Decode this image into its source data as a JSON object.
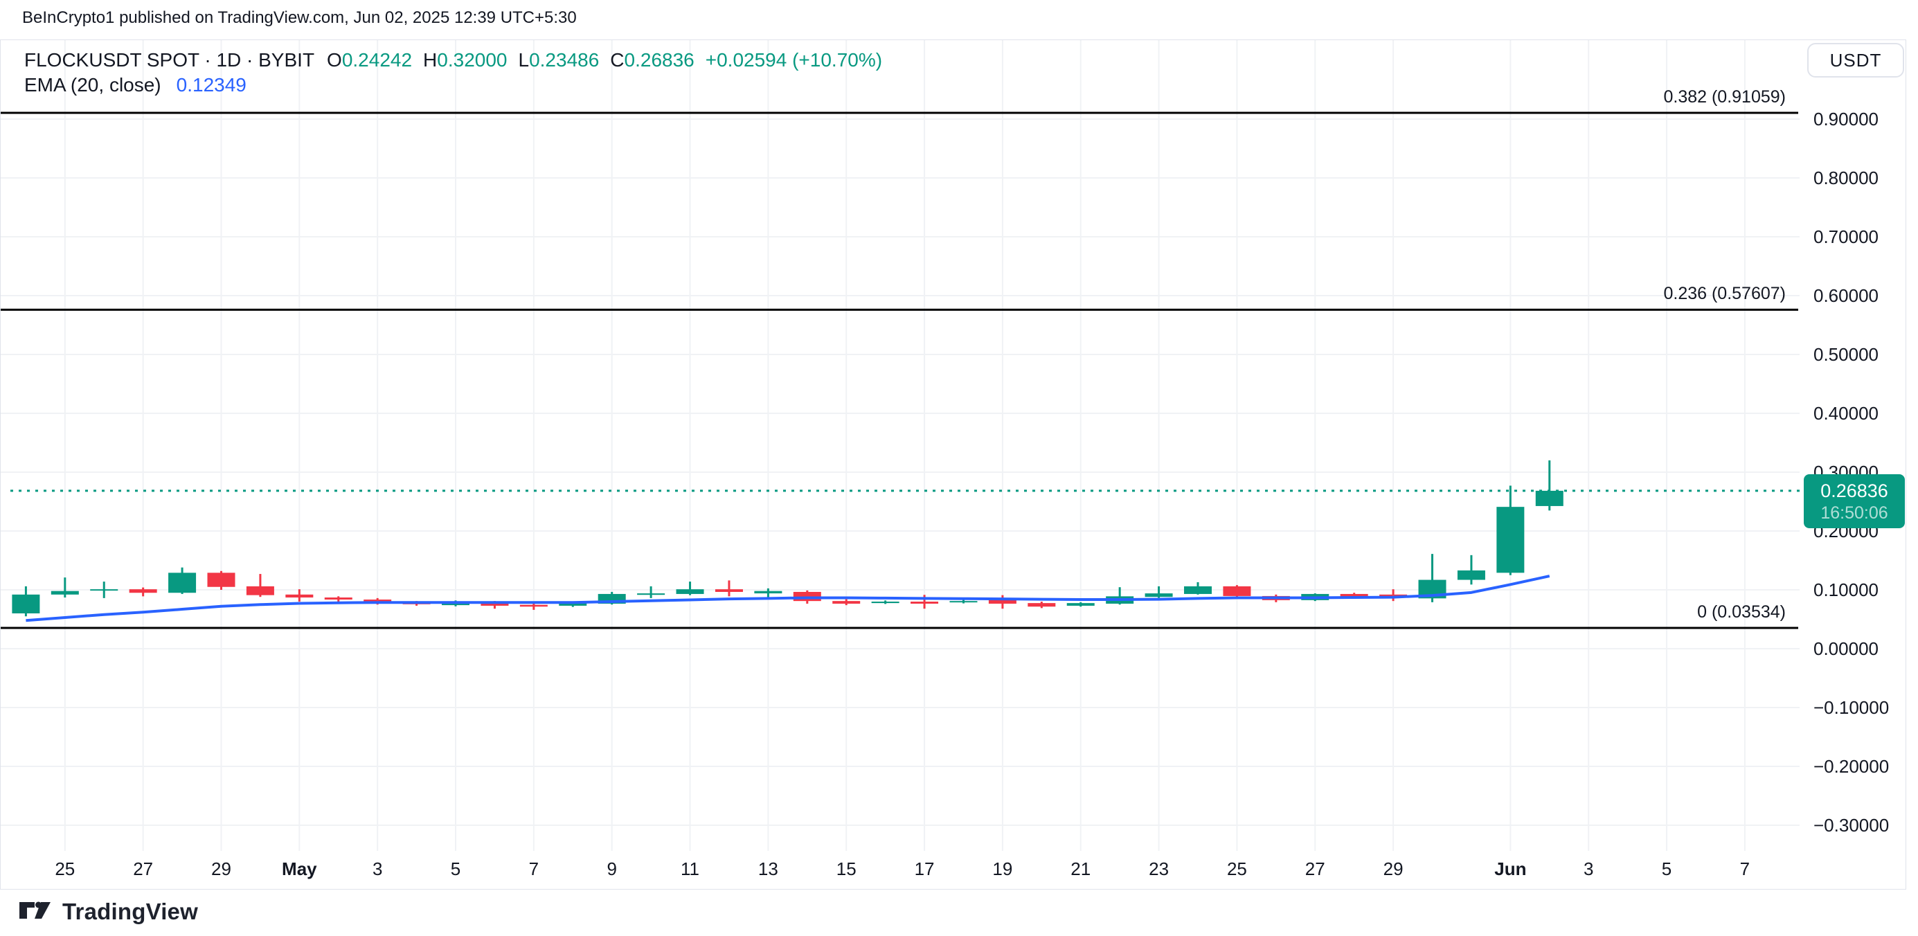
{
  "page": {
    "attribution": "BeInCrypto1 published on TradingView.com, Jun 02, 2025 12:39 UTC+5:30"
  },
  "legend": {
    "title": "FLOCKUSDT SPOT · 1D · BYBIT",
    "ohlc": [
      {
        "label": "O",
        "value": "0.24242"
      },
      {
        "label": "H",
        "value": "0.32000"
      },
      {
        "label": "L",
        "value": "0.23486"
      },
      {
        "label": "C",
        "value": "0.26836"
      }
    ],
    "change": "+0.02594 (+10.70%)",
    "ema_label": "EMA (20, close)",
    "ema_value": "0.12349"
  },
  "price_axis": {
    "currency_button": "USDT",
    "badge": {
      "price": "0.26836",
      "countdown": "16:50:06"
    },
    "ticks": [
      {
        "label": "0.90000",
        "price": 0.9
      },
      {
        "label": "0.80000",
        "price": 0.8
      },
      {
        "label": "0.70000",
        "price": 0.7
      },
      {
        "label": "0.60000",
        "price": 0.6
      },
      {
        "label": "0.50000",
        "price": 0.5
      },
      {
        "label": "0.40000",
        "price": 0.4
      },
      {
        "label": "0.30000",
        "price": 0.3
      },
      {
        "label": "0.20000",
        "price": 0.2
      },
      {
        "label": "0.10000",
        "price": 0.1
      },
      {
        "label": "0.00000",
        "price": 0.0
      },
      {
        "label": "−0.10000",
        "price": -0.1
      },
      {
        "label": "−0.20000",
        "price": -0.2
      },
      {
        "label": "−0.30000",
        "price": -0.3
      }
    ]
  },
  "time_axis": {
    "ticks": [
      {
        "label": "25",
        "day": 1,
        "bold": false
      },
      {
        "label": "27",
        "day": 3,
        "bold": false
      },
      {
        "label": "29",
        "day": 5,
        "bold": false
      },
      {
        "label": "May",
        "day": 7,
        "bold": true
      },
      {
        "label": "3",
        "day": 9,
        "bold": false
      },
      {
        "label": "5",
        "day": 11,
        "bold": false
      },
      {
        "label": "7",
        "day": 13,
        "bold": false
      },
      {
        "label": "9",
        "day": 15,
        "bold": false
      },
      {
        "label": "11",
        "day": 17,
        "bold": false
      },
      {
        "label": "13",
        "day": 19,
        "bold": false
      },
      {
        "label": "15",
        "day": 21,
        "bold": false
      },
      {
        "label": "17",
        "day": 23,
        "bold": false
      },
      {
        "label": "19",
        "day": 25,
        "bold": false
      },
      {
        "label": "21",
        "day": 27,
        "bold": false
      },
      {
        "label": "23",
        "day": 29,
        "bold": false
      },
      {
        "label": "25",
        "day": 31,
        "bold": false
      },
      {
        "label": "27",
        "day": 33,
        "bold": false
      },
      {
        "label": "29",
        "day": 35,
        "bold": false
      },
      {
        "label": "Jun",
        "day": 38,
        "bold": true
      },
      {
        "label": "3",
        "day": 40,
        "bold": false
      },
      {
        "label": "5",
        "day": 42,
        "bold": false
      },
      {
        "label": "7",
        "day": 44,
        "bold": false
      }
    ]
  },
  "fib_levels": [
    {
      "label": "0.382 (0.91059)",
      "price": 0.91059
    },
    {
      "label": "0.236 (0.57607)",
      "price": 0.57607
    },
    {
      "label": "0 (0.03534)",
      "price": 0.03534
    }
  ],
  "footer": {
    "brand": "TradingView"
  },
  "colors": {
    "up": "#089981",
    "down": "#f23645",
    "ema": "#2962ff",
    "text": "#131722",
    "grid": "#f0f2f5",
    "border": "#e0e3eb",
    "fib_line": "#000000",
    "close_line": "#089981",
    "badge_bg": "#089981"
  },
  "chart_data": {
    "type": "candlestick",
    "symbol": "FLOCKUSDT",
    "market": "SPOT",
    "interval": "1D",
    "exchange": "BYBIT",
    "title": "FLOCKUSDT SPOT · 1D · BYBIT",
    "last_close_price": 0.26836,
    "y_axis": {
      "min": -0.3,
      "max": 0.9,
      "step": 0.1,
      "currency": "USDT"
    },
    "grid": true,
    "candles": [
      {
        "date": "2025-04-24",
        "o": 0.06,
        "h": 0.106,
        "l": 0.055,
        "c": 0.092
      },
      {
        "date": "2025-04-25",
        "o": 0.092,
        "h": 0.121,
        "l": 0.087,
        "c": 0.098
      },
      {
        "date": "2025-04-26",
        "o": 0.099,
        "h": 0.114,
        "l": 0.086,
        "c": 0.101
      },
      {
        "date": "2025-04-27",
        "o": 0.101,
        "h": 0.104,
        "l": 0.089,
        "c": 0.095
      },
      {
        "date": "2025-04-28",
        "o": 0.095,
        "h": 0.138,
        "l": 0.093,
        "c": 0.129
      },
      {
        "date": "2025-04-29",
        "o": 0.129,
        "h": 0.132,
        "l": 0.1,
        "c": 0.105
      },
      {
        "date": "2025-04-30",
        "o": 0.106,
        "h": 0.127,
        "l": 0.088,
        "c": 0.091
      },
      {
        "date": "2025-05-01",
        "o": 0.092,
        "h": 0.101,
        "l": 0.08,
        "c": 0.087
      },
      {
        "date": "2025-05-02",
        "o": 0.087,
        "h": 0.089,
        "l": 0.0765,
        "c": 0.0835
      },
      {
        "date": "2025-05-03",
        "o": 0.0835,
        "h": 0.086,
        "l": 0.075,
        "c": 0.079
      },
      {
        "date": "2025-05-04",
        "o": 0.079,
        "h": 0.081,
        "l": 0.073,
        "c": 0.0755
      },
      {
        "date": "2025-05-05",
        "o": 0.074,
        "h": 0.082,
        "l": 0.072,
        "c": 0.08
      },
      {
        "date": "2025-05-06",
        "o": 0.078,
        "h": 0.081,
        "l": 0.068,
        "c": 0.073
      },
      {
        "date": "2025-05-07",
        "o": 0.0745,
        "h": 0.079,
        "l": 0.066,
        "c": 0.0715
      },
      {
        "date": "2025-05-08",
        "o": 0.073,
        "h": 0.079,
        "l": 0.071,
        "c": 0.078
      },
      {
        "date": "2025-05-09",
        "o": 0.0765,
        "h": 0.0965,
        "l": 0.075,
        "c": 0.093
      },
      {
        "date": "2025-05-10",
        "o": 0.0915,
        "h": 0.106,
        "l": 0.086,
        "c": 0.094
      },
      {
        "date": "2025-05-11",
        "o": 0.093,
        "h": 0.114,
        "l": 0.091,
        "c": 0.101
      },
      {
        "date": "2025-05-12",
        "o": 0.101,
        "h": 0.116,
        "l": 0.089,
        "c": 0.0965
      },
      {
        "date": "2025-05-13",
        "o": 0.094,
        "h": 0.1025,
        "l": 0.0845,
        "c": 0.098
      },
      {
        "date": "2025-05-14",
        "o": 0.0965,
        "h": 0.099,
        "l": 0.0765,
        "c": 0.081
      },
      {
        "date": "2025-05-15",
        "o": 0.081,
        "h": 0.084,
        "l": 0.074,
        "c": 0.0765
      },
      {
        "date": "2025-05-16",
        "o": 0.0775,
        "h": 0.082,
        "l": 0.076,
        "c": 0.08
      },
      {
        "date": "2025-05-17",
        "o": 0.08,
        "h": 0.0915,
        "l": 0.068,
        "c": 0.0765
      },
      {
        "date": "2025-05-18",
        "o": 0.079,
        "h": 0.084,
        "l": 0.077,
        "c": 0.081
      },
      {
        "date": "2025-05-19",
        "o": 0.0845,
        "h": 0.091,
        "l": 0.068,
        "c": 0.0765
      },
      {
        "date": "2025-05-20",
        "o": 0.0775,
        "h": 0.08,
        "l": 0.069,
        "c": 0.0715
      },
      {
        "date": "2025-05-21",
        "o": 0.073,
        "h": 0.079,
        "l": 0.0715,
        "c": 0.0775
      },
      {
        "date": "2025-05-22",
        "o": 0.0765,
        "h": 0.1045,
        "l": 0.075,
        "c": 0.089
      },
      {
        "date": "2025-05-23",
        "o": 0.088,
        "h": 0.106,
        "l": 0.0865,
        "c": 0.094
      },
      {
        "date": "2025-05-24",
        "o": 0.093,
        "h": 0.113,
        "l": 0.092,
        "c": 0.106
      },
      {
        "date": "2025-05-25",
        "o": 0.106,
        "h": 0.108,
        "l": 0.088,
        "c": 0.0895
      },
      {
        "date": "2025-05-26",
        "o": 0.0895,
        "h": 0.092,
        "l": 0.079,
        "c": 0.0825
      },
      {
        "date": "2025-05-27",
        "o": 0.0825,
        "h": 0.094,
        "l": 0.081,
        "c": 0.093
      },
      {
        "date": "2025-05-28",
        "o": 0.093,
        "h": 0.095,
        "l": 0.0855,
        "c": 0.088
      },
      {
        "date": "2025-05-29",
        "o": 0.092,
        "h": 0.101,
        "l": 0.081,
        "c": 0.0885
      },
      {
        "date": "2025-05-30",
        "o": 0.0855,
        "h": 0.161,
        "l": 0.079,
        "c": 0.117
      },
      {
        "date": "2025-05-31",
        "o": 0.117,
        "h": 0.159,
        "l": 0.109,
        "c": 0.133
      },
      {
        "date": "2025-06-01",
        "o": 0.129,
        "h": 0.277,
        "l": 0.125,
        "c": 0.241
      },
      {
        "date": "2025-06-02",
        "o": 0.24242,
        "h": 0.32,
        "l": 0.23486,
        "c": 0.26836
      }
    ],
    "ema20": [
      0.048,
      0.053,
      0.058,
      0.062,
      0.067,
      0.072,
      0.075,
      0.077,
      0.078,
      0.0785,
      0.0785,
      0.0785,
      0.0785,
      0.0785,
      0.0785,
      0.08,
      0.0815,
      0.083,
      0.0845,
      0.0855,
      0.0865,
      0.0865,
      0.086,
      0.0855,
      0.085,
      0.0845,
      0.084,
      0.0835,
      0.0835,
      0.084,
      0.0855,
      0.0865,
      0.0865,
      0.0865,
      0.087,
      0.0875,
      0.0905,
      0.0955,
      0.109,
      0.1235
    ]
  }
}
